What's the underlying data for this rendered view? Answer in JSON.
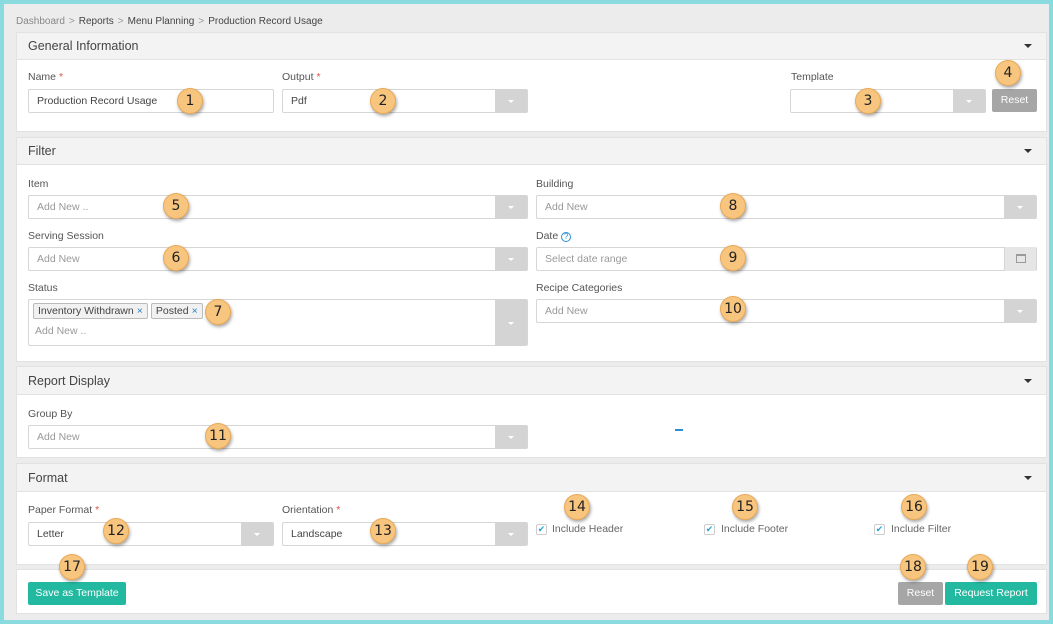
{
  "breadcrumb": [
    "Dashboard",
    "Reports",
    "Menu Planning",
    "Production Record Usage"
  ],
  "general": {
    "title": "General Information",
    "name_label": "Name",
    "name_value": "Production Record Usage",
    "output_label": "Output",
    "output_value": "Pdf",
    "template_label": "Template",
    "template_value": "",
    "reset": "Reset"
  },
  "filter": {
    "title": "Filter",
    "item_label": "Item",
    "item_ph": "Add New ..",
    "building_label": "Building",
    "building_ph": "Add New",
    "session_label": "Serving Session",
    "session_ph": "Add New",
    "date_label": "Date",
    "date_ph": "Select date range",
    "status_label": "Status",
    "status_tags": [
      "Inventory Withdrawn",
      "Posted"
    ],
    "status_ph": "Add New ..",
    "recipe_label": "Recipe Categories",
    "recipe_ph": "Add New"
  },
  "display": {
    "title": "Report Display",
    "group_label": "Group By",
    "group_ph": "Add New"
  },
  "format": {
    "title": "Format",
    "paper_label": "Paper Format",
    "paper_value": "Letter",
    "orient_label": "Orientation",
    "orient_value": "Landscape",
    "include_header": "Include Header",
    "include_footer": "Include Footer",
    "include_filter": "Include Filter",
    "checked": [
      true,
      true,
      true
    ]
  },
  "footer": {
    "save_template": "Save as Template",
    "reset": "Reset",
    "request": "Request Report"
  },
  "colors": {
    "accent": "#22b9a0",
    "badge": "#f7c57e",
    "frame": "#8adbdf"
  },
  "badges": [
    "1",
    "2",
    "3",
    "4",
    "5",
    "6",
    "7",
    "8",
    "9",
    "10",
    "11",
    "12",
    "13",
    "14",
    "15",
    "16",
    "17",
    "18",
    "19"
  ]
}
